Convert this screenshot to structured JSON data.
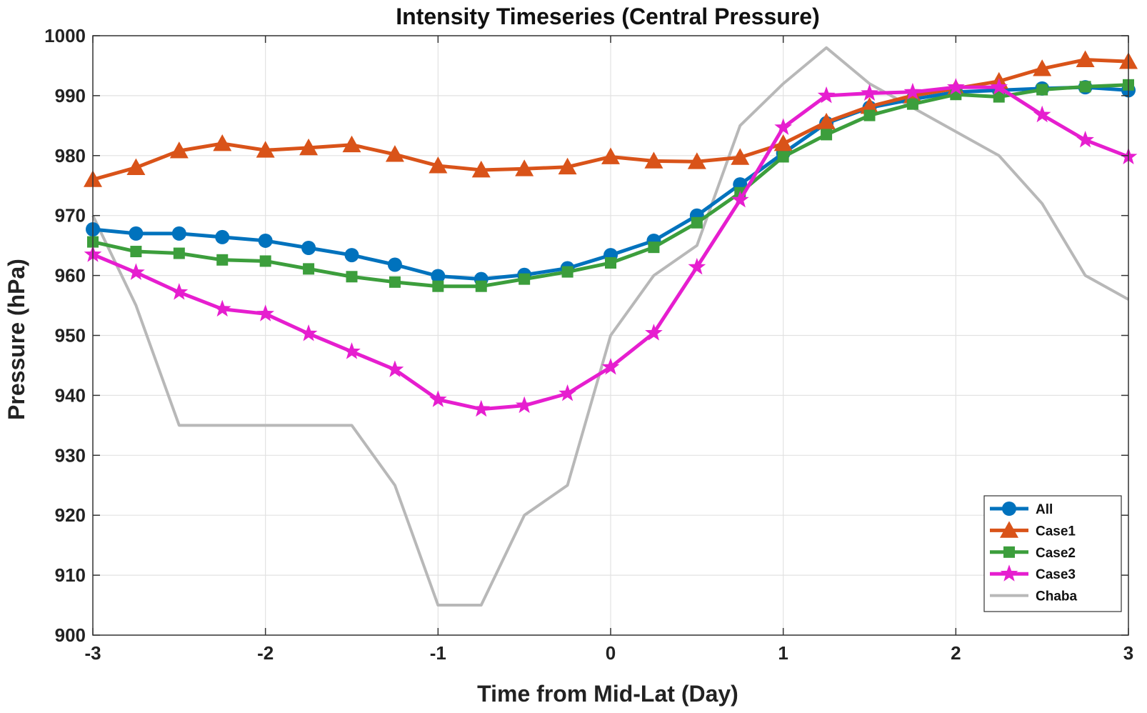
{
  "chart_data": {
    "type": "line",
    "title": "Intensity Timeseries (Central Pressure)",
    "xlabel": "Time from Mid-Lat (Day)",
    "ylabel": "Pressure (hPa)",
    "xlim": [
      -3,
      3
    ],
    "ylim": [
      900,
      1000
    ],
    "xticks": [
      -3,
      -2,
      -1,
      0,
      1,
      2,
      3
    ],
    "yticks": [
      900,
      910,
      920,
      930,
      940,
      950,
      960,
      970,
      980,
      990,
      1000
    ],
    "grid": true,
    "legend_position": "bottom-right",
    "x": [
      -3,
      -2.75,
      -2.5,
      -2.25,
      -2,
      -1.75,
      -1.5,
      -1.25,
      -1,
      -0.75,
      -0.5,
      -0.25,
      0,
      0.25,
      0.5,
      0.75,
      1,
      1.25,
      1.5,
      1.75,
      2,
      2.25,
      2.5,
      2.75,
      3
    ],
    "series": [
      {
        "name": "All",
        "color": "#0072BD",
        "marker": "circle",
        "values": [
          967.7,
          967.0,
          967.0,
          966.4,
          965.8,
          964.6,
          963.4,
          961.8,
          959.9,
          959.4,
          960.1,
          961.2,
          963.4,
          965.8,
          970.0,
          975.2,
          980.4,
          985.4,
          988.0,
          989.4,
          990.6,
          990.9,
          991.2,
          991.4,
          990.9
        ]
      },
      {
        "name": "Case1",
        "color": "#D95319",
        "marker": "triangle",
        "values": [
          976.0,
          978.0,
          980.8,
          982.0,
          980.9,
          981.3,
          981.8,
          980.2,
          978.3,
          977.6,
          977.8,
          978.1,
          979.8,
          979.1,
          979.0,
          979.7,
          982.0,
          985.6,
          988.2,
          990.0,
          991.2,
          992.4,
          994.5,
          996.0,
          995.7
        ]
      },
      {
        "name": "Case2",
        "color": "#3C9E3C",
        "marker": "square",
        "values": [
          965.6,
          964.0,
          963.7,
          962.6,
          962.4,
          961.1,
          959.8,
          958.9,
          958.2,
          958.2,
          959.4,
          960.6,
          962.1,
          964.7,
          968.8,
          973.8,
          979.8,
          983.5,
          986.7,
          988.6,
          990.2,
          989.8,
          991.0,
          991.5,
          991.8
        ]
      },
      {
        "name": "Case3",
        "color": "#E61ECF",
        "marker": "star",
        "values": [
          963.5,
          960.5,
          957.2,
          954.4,
          953.6,
          950.3,
          947.3,
          944.3,
          939.3,
          937.7,
          938.3,
          940.3,
          944.7,
          950.4,
          961.4,
          972.6,
          984.7,
          990.0,
          990.4,
          990.6,
          991.4,
          991.4,
          986.8,
          982.6,
          979.8
        ]
      },
      {
        "name": "Chaba",
        "color": "#B8B8B8",
        "marker": "none",
        "values": [
          970,
          955,
          935,
          935,
          935,
          935,
          935,
          925,
          905,
          905,
          920,
          925,
          950,
          960,
          965,
          985,
          992,
          998,
          992,
          988,
          984,
          980,
          972,
          960,
          956
        ]
      }
    ]
  }
}
